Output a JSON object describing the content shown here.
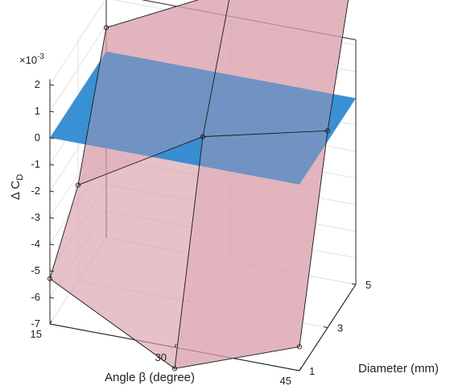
{
  "chart_data": {
    "type": "surface3d",
    "title": "",
    "xlabel": "Angle β (degree)",
    "ylabel": "Diameter (mm)",
    "zlabel": "Δ C",
    "zlabel_sub": "D",
    "z_exponent_label": "×10",
    "z_exponent": "-3",
    "x_ticks": [
      "15",
      "30",
      "45"
    ],
    "y_ticks": [
      "1",
      "3",
      "5"
    ],
    "z_ticks": [
      "2",
      "1",
      "0",
      "-1",
      "-2",
      "-3",
      "-4",
      "-5",
      "-6",
      "-7"
    ],
    "x": [
      15,
      30,
      45
    ],
    "y": [
      1,
      3,
      5
    ],
    "z_ylim": [
      -7,
      2.2
    ],
    "z_scale": 0.001,
    "surfaces": [
      {
        "name": "",
        "color": "#d9a0ab",
        "edge_color": "#1a1a1a",
        "z": [
          [
            -5.3,
            -3.4,
            0.9
          ],
          [
            -7.8,
            -0.7,
            3.2
          ],
          [
            -6.1,
            0.4,
            5.5
          ]
        ]
      },
      {
        "name": "",
        "color": "#2f8ad2",
        "z_constant": 0
      }
    ],
    "grid": true
  }
}
